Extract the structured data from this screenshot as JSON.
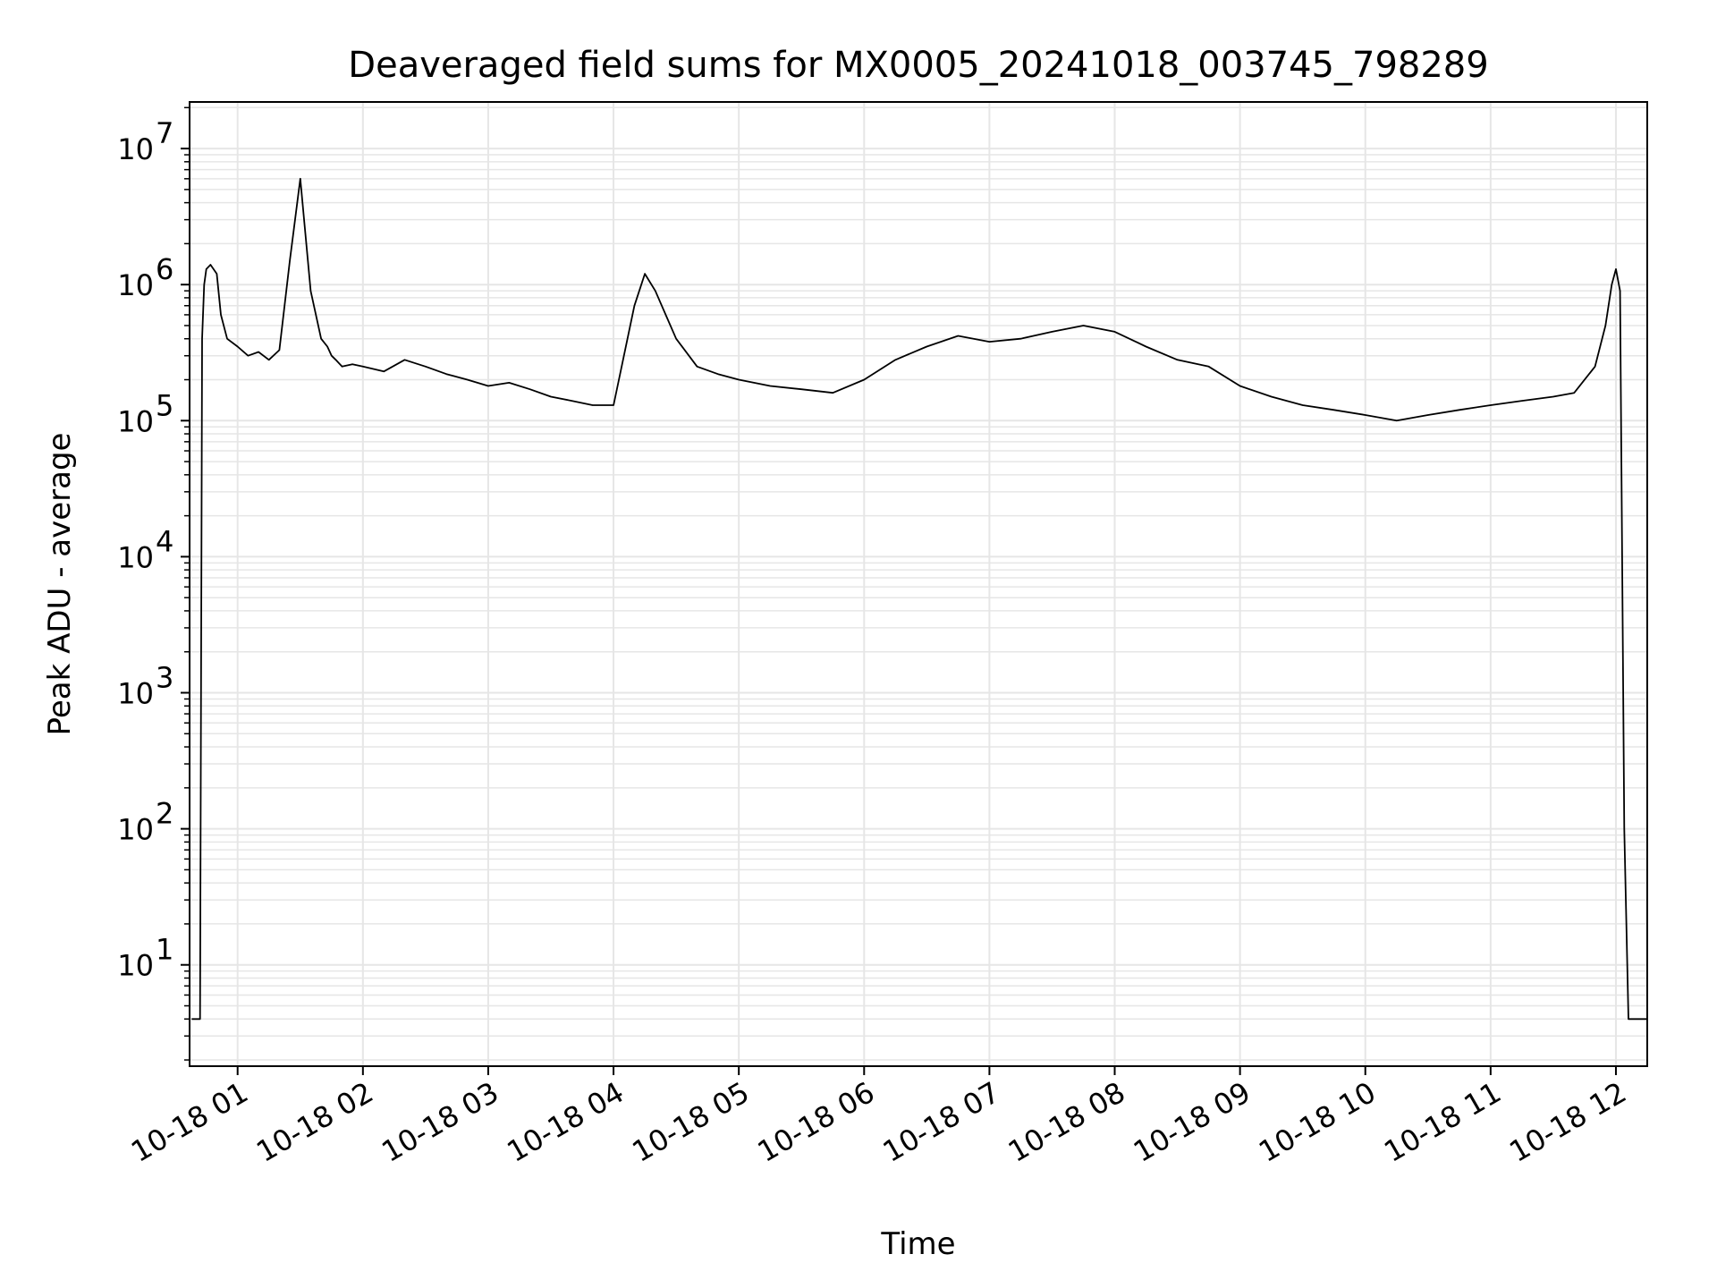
{
  "chart_data": {
    "type": "line",
    "title": "Deaveraged field sums for MX0005_20241018_003745_798289",
    "xlabel": "Time",
    "ylabel": "Peak ADU - average",
    "y_scale": "log",
    "ylim": [
      1.8,
      22000000
    ],
    "xlim": [
      "2024-10-18 00:37",
      "2024-10-18 12:15"
    ],
    "grid": true,
    "line_color": "#000000",
    "grid_color": "#e6e6e6",
    "x_ticks": [
      {
        "value": "2024-10-18 01:00",
        "label": "10-18 01"
      },
      {
        "value": "2024-10-18 02:00",
        "label": "10-18 02"
      },
      {
        "value": "2024-10-18 03:00",
        "label": "10-18 03"
      },
      {
        "value": "2024-10-18 04:00",
        "label": "10-18 04"
      },
      {
        "value": "2024-10-18 05:00",
        "label": "10-18 05"
      },
      {
        "value": "2024-10-18 06:00",
        "label": "10-18 06"
      },
      {
        "value": "2024-10-18 07:00",
        "label": "10-18 07"
      },
      {
        "value": "2024-10-18 08:00",
        "label": "10-18 08"
      },
      {
        "value": "2024-10-18 09:00",
        "label": "10-18 09"
      },
      {
        "value": "2024-10-18 10:00",
        "label": "10-18 10"
      },
      {
        "value": "2024-10-18 11:00",
        "label": "10-18 11"
      },
      {
        "value": "2024-10-18 12:00",
        "label": "10-18 12"
      }
    ],
    "y_ticks": [
      {
        "value": 10,
        "label": "10",
        "exp": "1"
      },
      {
        "value": 100,
        "label": "10",
        "exp": "2"
      },
      {
        "value": 1000,
        "label": "10",
        "exp": "3"
      },
      {
        "value": 10000,
        "label": "10",
        "exp": "4"
      },
      {
        "value": 100000,
        "label": "10",
        "exp": "5"
      },
      {
        "value": 1000000,
        "label": "10",
        "exp": "6"
      },
      {
        "value": 10000000,
        "label": "10",
        "exp": "7"
      }
    ],
    "series": [
      {
        "x": [
          "2024-10-18 00:38",
          "2024-10-18 00:40",
          "2024-10-18 00:42",
          "2024-10-18 00:43",
          "2024-10-18 00:44",
          "2024-10-18 00:45",
          "2024-10-18 00:47",
          "2024-10-18 00:50",
          "2024-10-18 00:52",
          "2024-10-18 00:55",
          "2024-10-18 01:00",
          "2024-10-18 01:05",
          "2024-10-18 01:10",
          "2024-10-18 01:15",
          "2024-10-18 01:20",
          "2024-10-18 01:25",
          "2024-10-18 01:30",
          "2024-10-18 01:35",
          "2024-10-18 01:40",
          "2024-10-18 01:43",
          "2024-10-18 01:45",
          "2024-10-18 01:47",
          "2024-10-18 01:50",
          "2024-10-18 01:55",
          "2024-10-18 02:00",
          "2024-10-18 02:10",
          "2024-10-18 02:20",
          "2024-10-18 02:30",
          "2024-10-18 02:40",
          "2024-10-18 02:50",
          "2024-10-18 03:00",
          "2024-10-18 03:10",
          "2024-10-18 03:20",
          "2024-10-18 03:30",
          "2024-10-18 03:40",
          "2024-10-18 03:50",
          "2024-10-18 04:00",
          "2024-10-18 04:10",
          "2024-10-18 04:15",
          "2024-10-18 04:20",
          "2024-10-18 04:25",
          "2024-10-18 04:30",
          "2024-10-18 04:40",
          "2024-10-18 04:50",
          "2024-10-18 05:00",
          "2024-10-18 05:15",
          "2024-10-18 05:30",
          "2024-10-18 05:45",
          "2024-10-18 06:00",
          "2024-10-18 06:15",
          "2024-10-18 06:30",
          "2024-10-18 06:45",
          "2024-10-18 07:00",
          "2024-10-18 07:15",
          "2024-10-18 07:30",
          "2024-10-18 07:45",
          "2024-10-18 08:00",
          "2024-10-18 08:15",
          "2024-10-18 08:30",
          "2024-10-18 08:45",
          "2024-10-18 09:00",
          "2024-10-18 09:15",
          "2024-10-18 09:30",
          "2024-10-18 09:45",
          "2024-10-18 10:00",
          "2024-10-18 10:15",
          "2024-10-18 10:30",
          "2024-10-18 10:45",
          "2024-10-18 11:00",
          "2024-10-18 11:15",
          "2024-10-18 11:30",
          "2024-10-18 11:40",
          "2024-10-18 11:50",
          "2024-10-18 11:55",
          "2024-10-18 11:58",
          "2024-10-18 12:00",
          "2024-10-18 12:02",
          "2024-10-18 12:04",
          "2024-10-18 12:06",
          "2024-10-18 12:08",
          "2024-10-18 12:15"
        ],
        "values": [
          4,
          4,
          4,
          400000,
          1000000,
          1300000,
          1400000,
          1200000,
          600000,
          400000,
          350000,
          300000,
          320000,
          280000,
          330000,
          1500000,
          6000000,
          900000,
          400000,
          350000,
          300000,
          280000,
          250000,
          260000,
          250000,
          230000,
          280000,
          250000,
          220000,
          200000,
          180000,
          190000,
          170000,
          150000,
          140000,
          130000,
          130000,
          700000,
          1200000,
          900000,
          600000,
          400000,
          250000,
          220000,
          200000,
          180000,
          170000,
          160000,
          200000,
          280000,
          350000,
          420000,
          380000,
          400000,
          450000,
          500000,
          450000,
          350000,
          280000,
          250000,
          180000,
          150000,
          130000,
          120000,
          110000,
          100000,
          110000,
          120000,
          130000,
          140000,
          150000,
          160000,
          250000,
          500000,
          1000000,
          1300000,
          900000,
          100,
          4,
          4,
          4
        ]
      }
    ]
  }
}
